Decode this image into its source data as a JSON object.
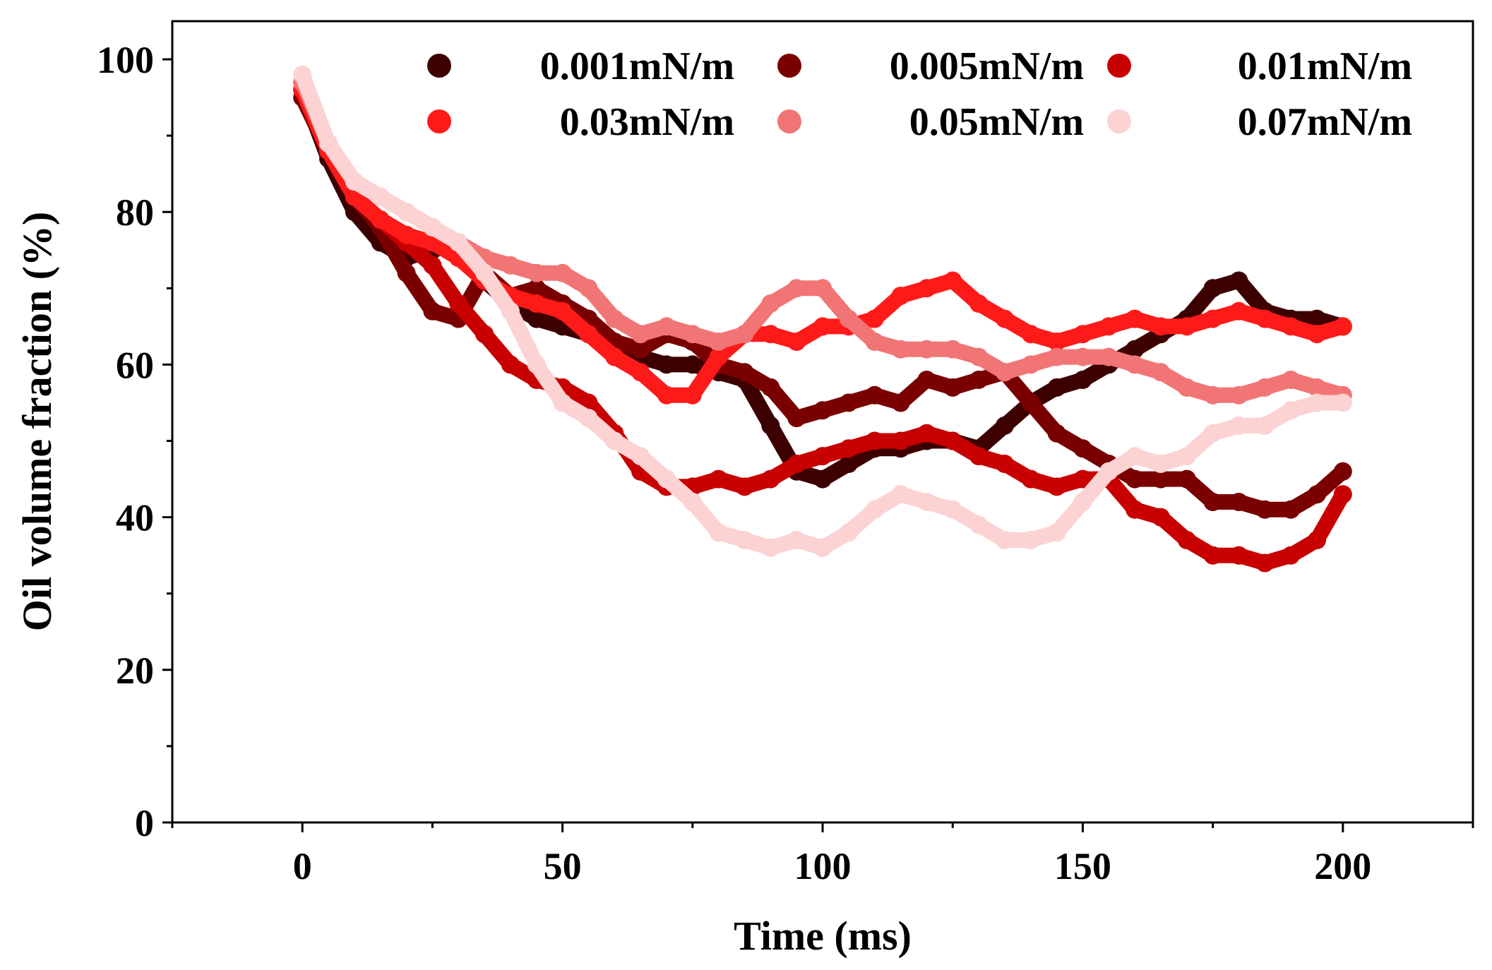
{
  "chart_data": {
    "type": "scatter",
    "xlabel": "Time (ms)",
    "ylabel": "Oil volume fraction (%)",
    "xlim": [
      -25,
      225
    ],
    "ylim": [
      0,
      105
    ],
    "xticks": [
      0,
      50,
      100,
      150,
      200
    ],
    "yticks": [
      0,
      20,
      40,
      60,
      80,
      100
    ],
    "grid": false,
    "legend_position": "top-right",
    "series": [
      {
        "name": "0.001mN/m",
        "color": "#3d0000",
        "x": [
          0,
          5,
          10,
          15,
          20,
          25,
          30,
          35,
          40,
          45,
          50,
          55,
          60,
          65,
          70,
          75,
          80,
          85,
          90,
          95,
          100,
          105,
          110,
          115,
          120,
          125,
          130,
          135,
          140,
          145,
          150,
          155,
          160,
          165,
          170,
          175,
          180,
          185,
          190,
          195,
          200
        ],
        "y": [
          96,
          87,
          80,
          76,
          74,
          75,
          76,
          71,
          68,
          66,
          65,
          64,
          62,
          61,
          60,
          60,
          59,
          58,
          52,
          46,
          45,
          47,
          49,
          49,
          50,
          50,
          49,
          52,
          55,
          57,
          58,
          60,
          62,
          64,
          66,
          70,
          71,
          67,
          66,
          66,
          65
        ]
      },
      {
        "name": "0.005mN/m",
        "color": "#7a0000",
        "x": [
          0,
          5,
          10,
          15,
          20,
          25,
          30,
          35,
          40,
          45,
          50,
          55,
          60,
          65,
          70,
          75,
          80,
          85,
          90,
          95,
          100,
          105,
          110,
          115,
          120,
          125,
          130,
          135,
          140,
          145,
          150,
          155,
          160,
          165,
          170,
          175,
          180,
          185,
          190,
          195,
          200
        ],
        "y": [
          95,
          88,
          82,
          78,
          72,
          67,
          66,
          72,
          69,
          70,
          68,
          66,
          63,
          62,
          64,
          63,
          60,
          59,
          57,
          53,
          54,
          55,
          56,
          55,
          58,
          57,
          58,
          59,
          55,
          51,
          49,
          47,
          45,
          45,
          45,
          42,
          42,
          41,
          41,
          43,
          46
        ]
      },
      {
        "name": "0.01mN/m",
        "color": "#c80000",
        "x": [
          0,
          5,
          10,
          15,
          20,
          25,
          30,
          35,
          40,
          45,
          50,
          55,
          60,
          65,
          70,
          75,
          80,
          85,
          90,
          95,
          100,
          105,
          110,
          115,
          120,
          125,
          130,
          135,
          140,
          145,
          150,
          155,
          160,
          165,
          170,
          175,
          180,
          185,
          190,
          195,
          200
        ],
        "y": [
          97,
          89,
          82,
          79,
          76,
          73,
          68,
          64,
          60,
          58,
          57,
          55,
          51,
          46,
          44,
          44,
          45,
          44,
          45,
          47,
          48,
          49,
          50,
          50,
          51,
          50,
          48,
          47,
          45,
          44,
          45,
          45,
          41,
          40,
          37,
          35,
          35,
          34,
          35,
          37,
          43
        ]
      },
      {
        "name": "0.03mN/m",
        "color": "#ff1a1a",
        "x": [
          0,
          5,
          10,
          15,
          20,
          25,
          30,
          35,
          40,
          45,
          50,
          55,
          60,
          65,
          70,
          75,
          80,
          85,
          90,
          95,
          100,
          105,
          110,
          115,
          120,
          125,
          130,
          135,
          140,
          145,
          150,
          155,
          160,
          165,
          170,
          175,
          180,
          185,
          190,
          195,
          200
        ],
        "y": [
          96,
          88,
          82,
          79,
          77,
          76,
          74,
          71,
          69,
          68,
          67,
          64,
          61,
          59,
          56,
          56,
          61,
          64,
          64,
          63,
          65,
          65,
          66,
          69,
          70,
          71,
          68,
          66,
          64,
          63,
          64,
          65,
          66,
          65,
          65,
          66,
          67,
          66,
          65,
          64,
          65
        ]
      },
      {
        "name": "0.05mN/m",
        "color": "#f27575",
        "x": [
          0,
          5,
          10,
          15,
          20,
          25,
          30,
          35,
          40,
          45,
          50,
          55,
          60,
          65,
          70,
          75,
          80,
          85,
          90,
          95,
          100,
          105,
          110,
          115,
          120,
          125,
          130,
          135,
          140,
          145,
          150,
          155,
          160,
          165,
          170,
          175,
          180,
          185,
          190,
          195,
          200
        ],
        "y": [
          97,
          89,
          84,
          82,
          80,
          78,
          76,
          74,
          73,
          72,
          72,
          70,
          66,
          64,
          65,
          64,
          63,
          64,
          68,
          70,
          70,
          66,
          63,
          62,
          62,
          62,
          61,
          59,
          60,
          61,
          61,
          61,
          60,
          59,
          57,
          56,
          56,
          57,
          58,
          57,
          56
        ]
      },
      {
        "name": "0.07mN/m",
        "color": "#fcd2d2",
        "x": [
          0,
          5,
          10,
          15,
          20,
          25,
          30,
          35,
          40,
          45,
          50,
          55,
          60,
          65,
          70,
          75,
          80,
          85,
          90,
          95,
          100,
          105,
          110,
          115,
          120,
          125,
          130,
          135,
          140,
          145,
          150,
          155,
          160,
          165,
          170,
          175,
          180,
          185,
          190,
          195,
          200
        ],
        "y": [
          98,
          89,
          84,
          82,
          80,
          78,
          76,
          72,
          67,
          60,
          55,
          53,
          50,
          48,
          45,
          42,
          38,
          37,
          36,
          37,
          36,
          38,
          41,
          43,
          42,
          41,
          39,
          37,
          37,
          38,
          42,
          46,
          48,
          47,
          48,
          51,
          52,
          52,
          54,
          55,
          55
        ]
      }
    ]
  }
}
